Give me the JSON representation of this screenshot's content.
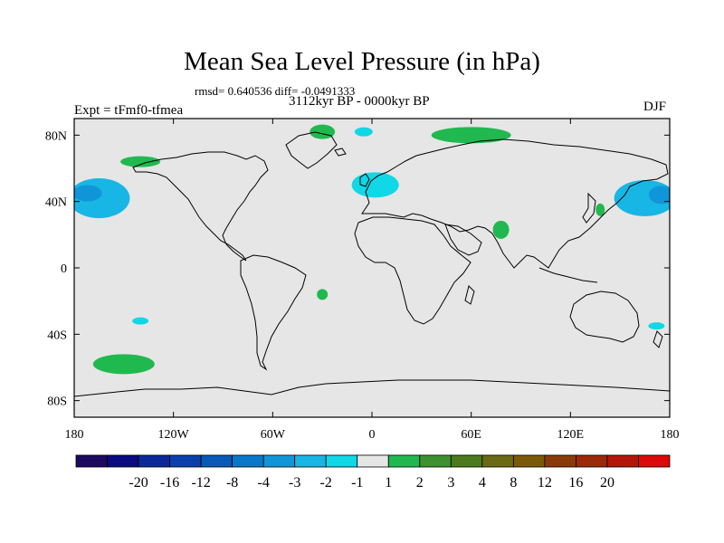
{
  "header": {
    "title": "Mean Sea Level Pressure (in hPa)",
    "stats": "rmsd= 0.640536 diff= -0.0491333",
    "period": "3112kyr BP - 0000kyr BP",
    "experiment": "Expt = tFmf0-tfmea",
    "season": "DJF"
  },
  "chart_data": {
    "type": "heatmap",
    "title": "Mean Sea Level Pressure (in hPa)",
    "subtitle": "3112kyr BP - 0000kyr BP",
    "xlim": [
      -180,
      180
    ],
    "ylim": [
      -90,
      90
    ],
    "x_ticks": [
      {
        "value": -180,
        "label": "180"
      },
      {
        "value": -120,
        "label": "120W"
      },
      {
        "value": -60,
        "label": "60W"
      },
      {
        "value": 0,
        "label": "0"
      },
      {
        "value": 60,
        "label": "60E"
      },
      {
        "value": 120,
        "label": "120E"
      },
      {
        "value": 180,
        "label": "180"
      }
    ],
    "y_ticks": [
      {
        "value": 80,
        "label": "80N"
      },
      {
        "value": 40,
        "label": "40N"
      },
      {
        "value": 0,
        "label": "0"
      },
      {
        "value": -40,
        "label": "40S"
      },
      {
        "value": -80,
        "label": "80S"
      }
    ],
    "colorbar": {
      "colors": [
        "#1c0a5e",
        "#0a0a80",
        "#0a2a9a",
        "#0a3fac",
        "#0a58b8",
        "#0a78c8",
        "#1096d8",
        "#18b6e4",
        "#10d8e6",
        "#e6e6e6",
        "#20b950",
        "#3f9030",
        "#4a7a1c",
        "#6a6a14",
        "#7a5a0a",
        "#8a3a0a",
        "#9a2a0a",
        "#b2170a",
        "#dc0a0a"
      ],
      "labels": [
        "-20",
        "-16",
        "-12",
        "-8",
        "-4",
        "-3",
        "-2",
        "-1",
        "1",
        "2",
        "3",
        "4",
        "8",
        "12",
        "16",
        "20"
      ]
    },
    "anomaly_regions": [
      {
        "name": "north-pacific-east-low",
        "category": -2,
        "lon": -165,
        "lat": 42
      },
      {
        "name": "north-pacific-east-low-core",
        "category": -3,
        "lon": -172,
        "lat": 45
      },
      {
        "name": "north-pacific-west-low",
        "category": -2,
        "lon": 165,
        "lat": 42
      },
      {
        "name": "north-pacific-west-low-core",
        "category": -3,
        "lon": 175,
        "lat": 44
      },
      {
        "name": "europe-low",
        "category": -1,
        "lon": 2,
        "lat": 50
      },
      {
        "name": "greenland-sea-low",
        "category": -1,
        "lon": -5,
        "lat": 82
      },
      {
        "name": "south-pacific-low",
        "category": -1,
        "lon": -140,
        "lat": -32
      },
      {
        "name": "tasman-low",
        "category": -1,
        "lon": 172,
        "lat": -35
      },
      {
        "name": "arctic-siberia-high",
        "category": 1,
        "lon": 60,
        "lat": 80
      },
      {
        "name": "greenland-high",
        "category": 1,
        "lon": -30,
        "lat": 82
      },
      {
        "name": "alaska-high",
        "category": 1,
        "lon": -140,
        "lat": 64
      },
      {
        "name": "india-high",
        "category": 1,
        "lon": 78,
        "lat": 23
      },
      {
        "name": "south-atlantic-high",
        "category": 1,
        "lon": -30,
        "lat": -16
      },
      {
        "name": "south-pacific-high",
        "category": 1,
        "lon": -150,
        "lat": -58
      },
      {
        "name": "east-asia-high",
        "category": 1,
        "lon": 138,
        "lat": 35
      }
    ]
  }
}
